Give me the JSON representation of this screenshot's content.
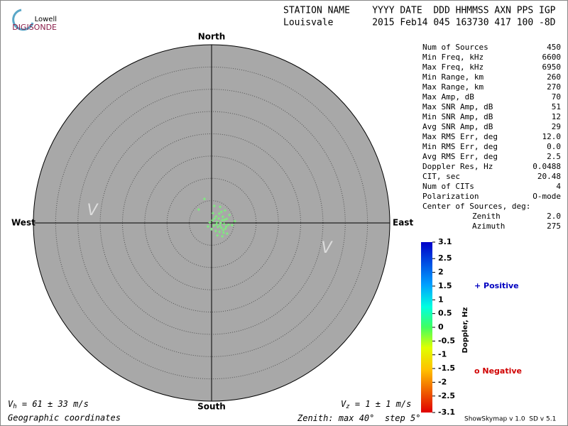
{
  "logo": {
    "top": "Lowell",
    "bottom": "DIGISONDE"
  },
  "header": {
    "row1": "STATION NAME    YYYY DATE  DDD HHMMSS AXN PPS IGP",
    "row2": "Louisvale       2015 Feb14 045 163730 417 100 -8D"
  },
  "compass": {
    "north": "North",
    "south": "South",
    "west": "West",
    "east": "East"
  },
  "velocity_markers": [
    "V",
    "V"
  ],
  "stats": [
    {
      "label": "Num of Sources",
      "value": "450"
    },
    {
      "label": "Min Freq, kHz",
      "value": "6600"
    },
    {
      "label": "Max Freq, kHz",
      "value": "6950"
    },
    {
      "label": "Min Range, km",
      "value": "260"
    },
    {
      "label": "Max Range, km",
      "value": "270"
    },
    {
      "label": "Max Amp, dB",
      "value": "70"
    },
    {
      "label": "Max SNR Amp, dB",
      "value": "51"
    },
    {
      "label": "Min SNR Amp, dB",
      "value": "12"
    },
    {
      "label": "Avg SNR Amp, dB",
      "value": "29"
    },
    {
      "label": "Max RMS Err, deg",
      "value": "12.0"
    },
    {
      "label": "Min RMS Err, deg",
      "value": "0.0"
    },
    {
      "label": "Avg RMS Err, deg",
      "value": "2.5"
    },
    {
      "label": "Doppler Res, Hz",
      "value": "0.0488"
    },
    {
      "label": "CIT, sec",
      "value": "20.48"
    },
    {
      "label": "Num of CITs",
      "value": "4"
    },
    {
      "label": "Polarization",
      "value": "O-mode"
    }
  ],
  "center": {
    "title": "Center of Sources, deg:",
    "zenith_label": "Zenith",
    "zenith": "2.0",
    "azimuth_label": "Azimuth",
    "azimuth": "275"
  },
  "colorbar": {
    "label": "Doppler, Hz",
    "lim": [
      -3.1,
      3.1
    ],
    "ticks": [
      3.1,
      2.5,
      2,
      1.5,
      1.0,
      0.5,
      0,
      -0.5,
      -1.0,
      -1.5,
      -2.0,
      -2.5,
      -3.1
    ],
    "positive": "+ Positive",
    "negative": "o Negative"
  },
  "footer": {
    "vh": {
      "symbol": "V",
      "subscript": "h",
      "text": " = 61 ± 33 m/s"
    },
    "vz": {
      "symbol": "V",
      "subscript": "z",
      "text": " = 1 ± 1 m/s"
    },
    "coords": "Geographic coordinates",
    "zenith": {
      "label": "Zenith: max ",
      "max": 40,
      "unit": "°",
      "step_label": "  step ",
      "step": 5
    },
    "version": "ShowSkymap v 1.0  SD v 5.1"
  },
  "sources": {
    "color": "#7cf07c",
    "points": [
      {
        "east": -1.6,
        "north": 5.4
      },
      {
        "east": -2.9,
        "north": 3.0
      },
      {
        "east": 0.6,
        "north": 3.8
      },
      {
        "east": 1.9,
        "north": 3.6
      },
      {
        "east": 2.2,
        "north": 2.5
      },
      {
        "east": 3.0,
        "north": 2.8
      },
      {
        "east": 0.3,
        "north": 2.2
      },
      {
        "east": 1.0,
        "north": 1.5
      },
      {
        "east": 1.6,
        "north": 1.0
      },
      {
        "east": 2.5,
        "north": 1.4
      },
      {
        "east": 3.4,
        "north": 0.9
      },
      {
        "east": 0.2,
        "north": 0.6
      },
      {
        "east": 1.2,
        "north": 0.2
      },
      {
        "east": 2.0,
        "north": 0.0
      },
      {
        "east": 2.8,
        "north": -0.2
      },
      {
        "east": 3.8,
        "north": -0.4
      },
      {
        "east": 4.6,
        "north": -0.5
      },
      {
        "east": 0.5,
        "north": -0.6
      },
      {
        "east": 1.4,
        "north": -0.9
      },
      {
        "east": 2.2,
        "north": -1.1
      },
      {
        "east": 3.1,
        "north": -1.3
      },
      {
        "east": 0.0,
        "north": -1.4
      },
      {
        "east": 0.9,
        "north": -1.8
      },
      {
        "east": 1.8,
        "north": -2.0
      },
      {
        "east": 2.7,
        "north": -2.2
      },
      {
        "east": 3.5,
        "north": -2.4
      },
      {
        "east": 1.3,
        "north": -2.8
      },
      {
        "east": 2.4,
        "north": -3.0
      },
      {
        "east": -0.4,
        "north": 0.1
      },
      {
        "east": -0.8,
        "north": -0.8
      },
      {
        "east": 4.0,
        "north": 1.8
      },
      {
        "east": 5.2,
        "north": 0.4
      },
      {
        "east": 1.7,
        "north": 2.1
      },
      {
        "east": 2.9,
        "north": 0.7
      },
      {
        "east": 1.1,
        "north": -0.3
      },
      {
        "east": 2.4,
        "north": 0.6
      },
      {
        "east": 1.9,
        "north": -0.6
      },
      {
        "east": 3.3,
        "north": -0.8
      },
      {
        "east": 0.7,
        "north": 1.0
      },
      {
        "east": 2.6,
        "north": -1.6
      }
    ]
  }
}
